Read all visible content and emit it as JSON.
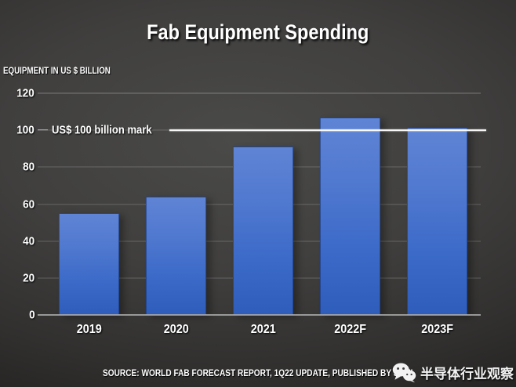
{
  "chart_data": {
    "type": "bar",
    "title": "Fab Equipment Spending",
    "ylabel": "EQUIPMENT IN US $ BILLION",
    "xlabel": "",
    "categories": [
      "2019",
      "2020",
      "2021",
      "2022F",
      "2023F"
    ],
    "values": [
      55,
      64,
      91,
      107,
      101.5
    ],
    "ylim": [
      0,
      120
    ],
    "yticks": [
      0,
      20,
      40,
      60,
      80,
      100,
      120
    ],
    "grid": true,
    "legend": false,
    "annotation": {
      "y": 100,
      "label": "US$ 100 billion mark"
    },
    "colors": {
      "bar_top": "#5f84d5",
      "bar_bottom": "#2f5dbb",
      "threshold_line": "#ffffff",
      "background_center": "#4a4a48",
      "background_edge": "#191918",
      "text": "#ffffff"
    }
  },
  "footer": {
    "source": "SOURCE: WORLD FAB FORECAST REPORT, 1Q22 UPDATE, PUBLISHED BY SEMI",
    "watermark_text": "半导体行业观察",
    "watermark_icon": "wechat-icon"
  }
}
